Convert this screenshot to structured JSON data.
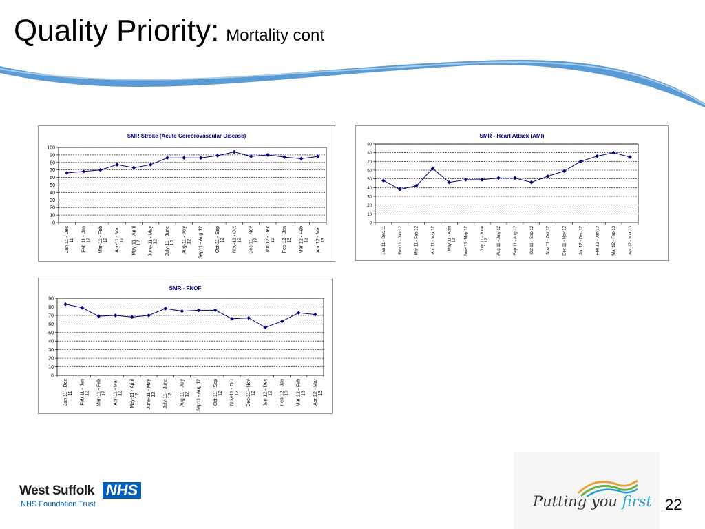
{
  "slide": {
    "title": "Quality Priority:",
    "subtitle": "Mortality cont",
    "page_number": "22"
  },
  "footer": {
    "trust_name": "West Suffolk",
    "nhs_logo": "NHS",
    "trust_subtitle": "NHS Foundation Trust",
    "strapline_before": "Putting you ",
    "strapline_emphasis": "first"
  },
  "colors": {
    "series_line": "#000080",
    "swoosh": "#5b9bd5",
    "nhs_blue": "#005eb8"
  },
  "chart_data": [
    {
      "type": "line",
      "title": "SMR Stroke  (Acute  Cerebrovascular  Disease)",
      "categories": [
        "Jan 11 - Dec 11",
        "Feb 11 - Jan 12",
        "Mar-11 - Feb 12",
        "Apr-11 - Mar 12",
        "May-11 - April 12",
        "June-11 - May 12",
        "July-11 - June 12",
        "Aug-11 - July 12",
        "Sep11 - Aug 12",
        "Oct-11 - Sep 12",
        "Nov-11 - Oct 12",
        "Dec-11 - Nov 12",
        "Jan 12 - Dec 12",
        "Feb 12 - Jan 13",
        "Mar 12 - Feb 13",
        "Apr 12 - Mar 13"
      ],
      "series": [
        {
          "values": [
            66,
            68,
            70,
            77,
            73,
            77,
            86,
            86,
            86,
            89,
            94,
            88,
            90,
            87,
            85,
            88
          ]
        }
      ],
      "ylim": [
        0,
        100
      ],
      "yticks": [
        0,
        10,
        20,
        30,
        40,
        50,
        60,
        70,
        80,
        90,
        100
      ],
      "grid": "horizontal dashed",
      "xlabel": "",
      "ylabel": ""
    },
    {
      "type": "line",
      "title": "SMR - Heart  Attack  (AMI)",
      "categories": [
        "Jan 11 - Dec 11",
        "Feb 11 - Jan 12",
        "Mar 11 - Feb 12",
        "Apr 11 - Mar 12",
        "May 11 - April 12",
        "June 11 -May 12",
        "July 11 - June 12",
        "Aug 11 - July 12",
        "Sep 11 - Aug 12",
        "Oct 11 - Sep 12",
        "Nov 11 - Oct 12",
        "Dec 11 - Nov 12",
        "Jan 12 - Dec 12",
        "Feb 12 - Jan 13",
        "Mar 12 - Feb 13",
        "Apr 12 - Mar 13"
      ],
      "series": [
        {
          "values": [
            48,
            38,
            42,
            62,
            46,
            49,
            49,
            51,
            51,
            46,
            53,
            59,
            70,
            76,
            80,
            75
          ]
        }
      ],
      "ylim": [
        0,
        90
      ],
      "yticks": [
        0,
        10,
        20,
        30,
        40,
        50,
        60,
        70,
        80,
        90
      ],
      "grid": "horizontal dashed",
      "xlabel": "",
      "ylabel": ""
    },
    {
      "type": "line",
      "title": "SMR - FNOF",
      "categories": [
        "Jan 11 - Dec 11",
        "Feb 11 - Jan 12",
        "Mar-11 - Feb 12",
        "Apr-11 - Mar 12",
        "May-11 - April 12",
        "June-11 - May 12",
        "July-11 - June 12",
        "Aug-11 - July 12",
        "Sep11 - Aug 12",
        "Oct-11 - Sep 12",
        "Nov-11 - Oct 12",
        "Dec-11 - Nov 12",
        "Jan 12 - Dec 12",
        "Feb 12 - Jan 13",
        "Mar 12 - Feb 13",
        "Apr 12 - Mar 13"
      ],
      "series": [
        {
          "values": [
            83,
            79,
            69,
            70,
            68,
            70,
            78,
            75,
            76,
            76,
            66,
            67,
            56,
            63,
            73,
            71
          ]
        }
      ],
      "ylim": [
        0,
        90
      ],
      "yticks": [
        0,
        10,
        20,
        30,
        40,
        50,
        60,
        70,
        80,
        90
      ],
      "grid": "horizontal dashed",
      "xlabel": "",
      "ylabel": ""
    }
  ]
}
